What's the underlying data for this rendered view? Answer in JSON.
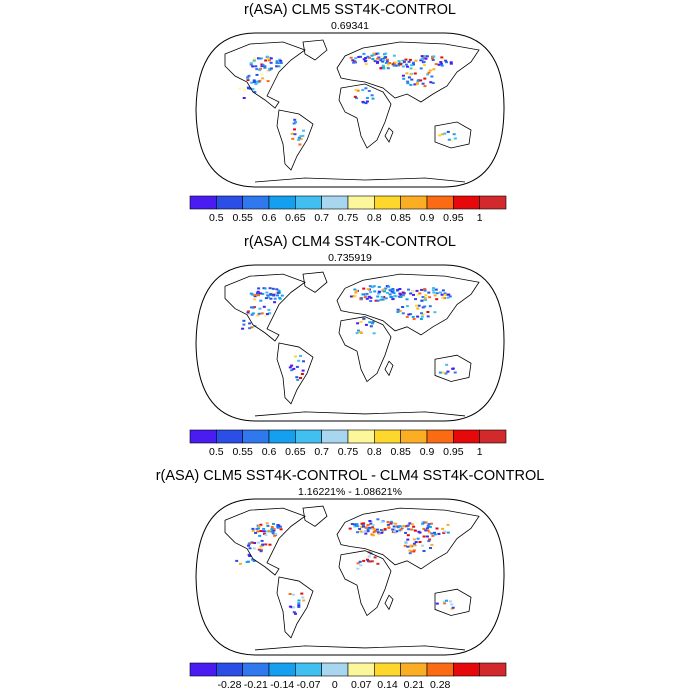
{
  "panels": [
    {
      "title": "r(ASA) CLM5 SST4K-CONTROL",
      "subtitle": "0.69341",
      "colorbar_labels": [
        "0.5",
        "0.55",
        "0.6",
        "0.65",
        "0.7",
        "0.75",
        "0.8",
        "0.85",
        "0.9",
        "0.95",
        "1"
      ]
    },
    {
      "title": "r(ASA) CLM4 SST4K-CONTROL",
      "subtitle": "0.735919",
      "colorbar_labels": [
        "0.5",
        "0.55",
        "0.6",
        "0.65",
        "0.7",
        "0.75",
        "0.8",
        "0.85",
        "0.9",
        "0.95",
        "1"
      ]
    },
    {
      "title": "r(ASA) CLM5 SST4K-CONTROL - CLM4 SST4K-CONTROL",
      "subtitle": "1.16221% - 1.08621%",
      "colorbar_labels": [
        "-0.28",
        "-0.21",
        "-0.14",
        "-0.07",
        "0",
        "0.07",
        "0.14",
        "0.21",
        "0.28"
      ]
    }
  ],
  "colors": {
    "colorbar_panels_1_2": [
      "#4a1cf2",
      "#2a4ee6",
      "#2f78ee",
      "#14a0ef",
      "#42bff1",
      "#a7d6ee",
      "#fdf79c",
      "#fdd72c",
      "#fbad24",
      "#fb6b14",
      "#e6090c",
      "#d22a2c"
    ],
    "colorbar_panel_3": [
      "#4a1cf2",
      "#2a4ee6",
      "#2f78ee",
      "#14a0ef",
      "#42bff1",
      "#a7d6ee",
      "#fdf79c",
      "#fdd72c",
      "#fbad24",
      "#fb6b14",
      "#e6090c",
      "#d22a2c"
    ],
    "coastline": "#000000"
  }
}
